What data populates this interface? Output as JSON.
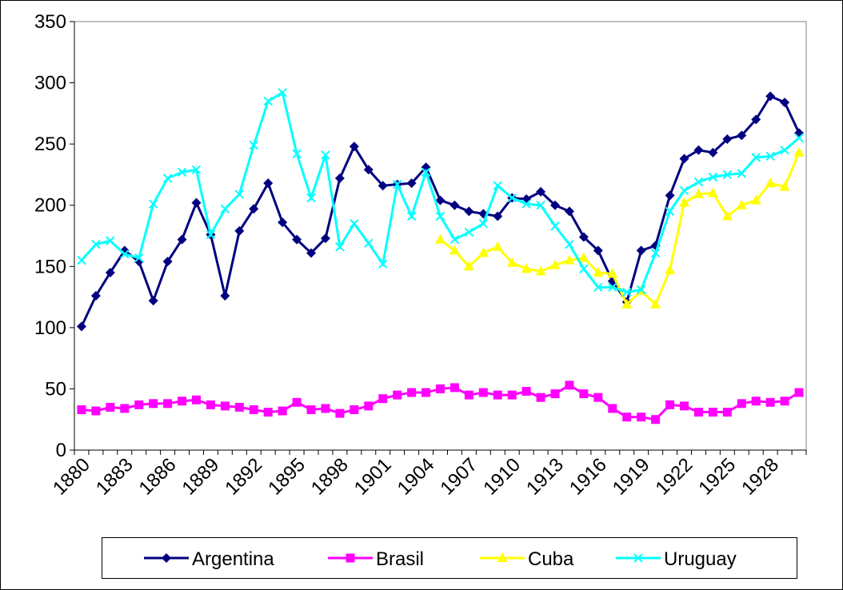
{
  "chart_data": {
    "type": "line",
    "categories": [
      "1880",
      null,
      null,
      "1883",
      null,
      null,
      "1886",
      null,
      null,
      "1889",
      null,
      null,
      "1892",
      null,
      null,
      "1895",
      null,
      null,
      "1898",
      null,
      null,
      "1901",
      null,
      null,
      "1904",
      null,
      null,
      "1907",
      null,
      null,
      "1910",
      null,
      null,
      "1913",
      null,
      null,
      "1916",
      null,
      null,
      "1919",
      null,
      null,
      "1922",
      null,
      null,
      "1925",
      null,
      null,
      "1928",
      null,
      null
    ],
    "series": [
      {
        "name": "Argentina",
        "color": "#000080",
        "marker": "diamond",
        "values": [
          101,
          126,
          145,
          163,
          154,
          122,
          154,
          172,
          202,
          176,
          126,
          179,
          197,
          218,
          186,
          172,
          161,
          173,
          222,
          248,
          229,
          216,
          217,
          218,
          231,
          204,
          200,
          195,
          193,
          191,
          206,
          205,
          211,
          200,
          195,
          174,
          163,
          138,
          121,
          163,
          167,
          208,
          238,
          245,
          243,
          254,
          257,
          270,
          289,
          284,
          259
        ]
      },
      {
        "name": "Brasil",
        "color": "#ff00ff",
        "marker": "square",
        "values": [
          33,
          32,
          35,
          34,
          37,
          38,
          38,
          40,
          41,
          37,
          36,
          35,
          33,
          31,
          32,
          39,
          33,
          34,
          30,
          33,
          36,
          42,
          45,
          47,
          47,
          50,
          51,
          45,
          47,
          45,
          45,
          48,
          43,
          46,
          53,
          46,
          43,
          34,
          27,
          27,
          25,
          37,
          36,
          31,
          31,
          31,
          38,
          40,
          39,
          40,
          47
        ]
      },
      {
        "name": "Cuba",
        "color": "#ffff00",
        "marker": "triangle",
        "values": [
          null,
          null,
          null,
          null,
          null,
          null,
          null,
          null,
          null,
          null,
          null,
          null,
          null,
          null,
          null,
          null,
          null,
          null,
          null,
          null,
          null,
          null,
          null,
          null,
          null,
          172,
          163,
          150,
          161,
          166,
          153,
          148,
          146,
          151,
          155,
          157,
          145,
          144,
          119,
          130,
          119,
          147,
          202,
          209,
          210,
          191,
          200,
          204,
          218,
          215,
          243
        ]
      },
      {
        "name": "Uruguay",
        "color": "#00ffff",
        "marker": "x",
        "values": [
          155,
          168,
          171,
          160,
          157,
          201,
          222,
          227,
          229,
          176,
          197,
          209,
          249,
          285,
          292,
          242,
          206,
          241,
          166,
          185,
          169,
          152,
          217,
          191,
          227,
          191,
          172,
          178,
          185,
          216,
          206,
          201,
          200,
          183,
          168,
          148,
          133,
          133,
          129,
          131,
          161,
          195,
          212,
          219,
          223,
          225,
          226,
          239,
          240,
          245,
          255
        ]
      }
    ],
    "ylim": [
      0,
      350
    ],
    "yticks": [
      0,
      50,
      100,
      150,
      200,
      250,
      300,
      350
    ],
    "grid": false,
    "legend": "bottom"
  }
}
